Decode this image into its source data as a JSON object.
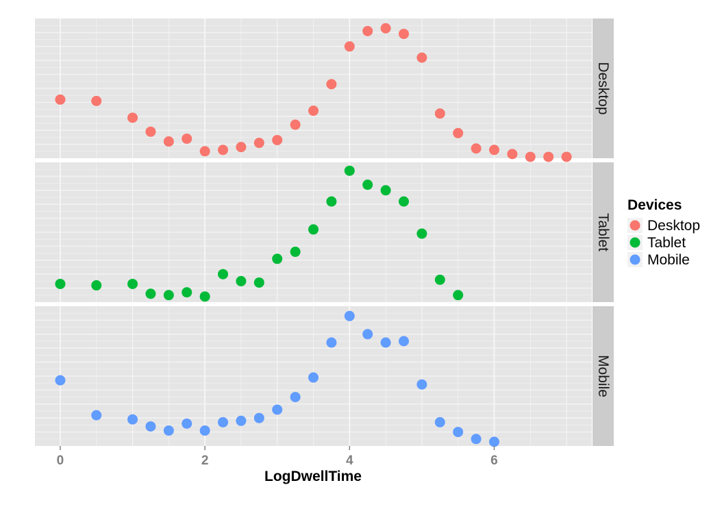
{
  "chart_data": {
    "type": "scatter",
    "xlabel": "LogDwellTime",
    "ylabel": "",
    "xlim": [
      -0.35,
      7.35
    ],
    "x_ticks": [
      0,
      2,
      4,
      6
    ],
    "grid": true,
    "legend_title": "Devices",
    "legend_placement": "right",
    "facets": [
      "Desktop",
      "Tablet",
      "Mobile"
    ],
    "series": [
      {
        "name": "Desktop",
        "color": "#F8766D",
        "ylim": [
          0,
          0.1
        ],
        "x": [
          0,
          0.5,
          1,
          1.25,
          1.5,
          1.75,
          2,
          2.25,
          2.5,
          2.75,
          3,
          3.25,
          3.5,
          3.75,
          4,
          4.25,
          4.5,
          4.75,
          5,
          5.25,
          5.5,
          5.75,
          6,
          6.25,
          6.5,
          6.75,
          7
        ],
        "y": [
          0.042,
          0.041,
          0.029,
          0.019,
          0.012,
          0.014,
          0.005,
          0.006,
          0.008,
          0.011,
          0.013,
          0.024,
          0.034,
          0.053,
          0.08,
          0.091,
          0.093,
          0.089,
          0.072,
          0.032,
          0.018,
          0.007,
          0.006,
          0.003,
          0.001,
          0.001,
          0.001
        ]
      },
      {
        "name": "Tablet",
        "color": "#00BA38",
        "ylim": [
          0,
          0.1
        ],
        "x": [
          0,
          0.5,
          1,
          1.25,
          1.5,
          1.75,
          2,
          2.25,
          2.5,
          2.75,
          3,
          3.25,
          3.5,
          3.75,
          4,
          4.25,
          4.5,
          4.75,
          5,
          5.25,
          5.5
        ],
        "y": [
          0.013,
          0.012,
          0.013,
          0.006,
          0.005,
          0.007,
          0.004,
          0.02,
          0.015,
          0.014,
          0.031,
          0.036,
          0.052,
          0.072,
          0.094,
          0.084,
          0.08,
          0.072,
          0.049,
          0.016,
          0.005
        ]
      },
      {
        "name": "Mobile",
        "color": "#619CFF",
        "ylim": [
          0,
          0.1
        ],
        "x": [
          0,
          0.5,
          1,
          1.25,
          1.5,
          1.75,
          2,
          2.25,
          2.5,
          2.75,
          3,
          3.25,
          3.5,
          3.75,
          4,
          4.25,
          4.5,
          4.75,
          5,
          5.25,
          5.5,
          5.75,
          6
        ],
        "y": [
          0.047,
          0.022,
          0.019,
          0.014,
          0.011,
          0.016,
          0.011,
          0.017,
          0.018,
          0.02,
          0.026,
          0.035,
          0.049,
          0.074,
          0.093,
          0.08,
          0.074,
          0.075,
          0.044,
          0.017,
          0.01,
          0.005,
          0.003
        ]
      }
    ]
  }
}
